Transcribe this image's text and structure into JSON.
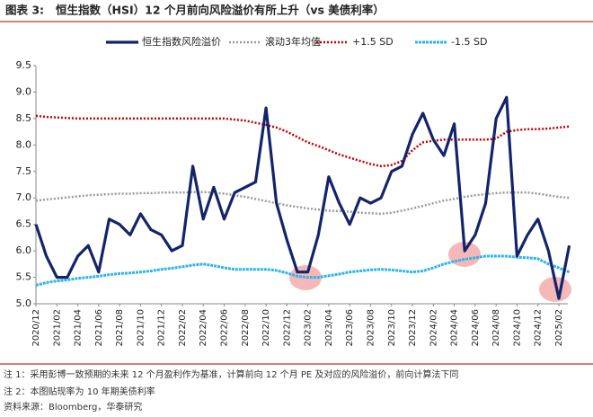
{
  "chart_data": {
    "type": "line",
    "label": "图表 3:",
    "title": "恒生指数（HSI）12 个月前向风险溢价有所上升（vs  美债利率）",
    "categories": [
      "2020/12",
      null,
      "2021/02",
      null,
      "2021/04",
      null,
      "2021/06",
      null,
      "2021/08",
      null,
      "2021/10",
      null,
      "2021/12",
      null,
      "2022/02",
      null,
      "2022/04",
      null,
      "2022/06",
      null,
      "2022/08",
      null,
      "2022/10",
      null,
      "2022/12",
      null,
      "2023/02",
      null,
      "2023/04",
      null,
      "2023/06",
      null,
      "2023/08",
      null,
      "2023/10",
      null,
      "2023/12",
      null,
      "2024/02",
      null,
      "2024/04",
      null,
      "2024/06",
      null,
      "2024/08",
      null,
      "2024/10",
      null,
      "2024/12",
      null,
      "2025/02",
      null
    ],
    "ylim": [
      5.0,
      9.5
    ],
    "yticks": [
      {
        "value": 5.0,
        "label": "5.0"
      },
      5.5,
      {
        "value": 6.0,
        "label": "6.0"
      },
      6.5,
      {
        "value": 7.0,
        "label": "7.0"
      },
      7.5,
      {
        "value": 8.0,
        "label": "8.0"
      },
      8.5,
      {
        "value": 9.0,
        "label": "9.0"
      },
      9.5
    ],
    "grid": false,
    "series": [
      {
        "name": "恒生指数风险溢价",
        "color": "#14246b",
        "values": [
          6.5,
          5.9,
          5.5,
          5.5,
          5.9,
          6.1,
          5.6,
          6.6,
          6.5,
          6.3,
          6.7,
          6.4,
          6.3,
          6.0,
          6.1,
          7.6,
          6.6,
          7.2,
          6.6,
          7.1,
          7.2,
          7.3,
          8.7,
          6.9,
          6.2,
          5.6,
          5.6,
          6.3,
          7.4,
          6.9,
          6.5,
          7.0,
          6.9,
          7.0,
          7.5,
          7.6,
          8.2,
          8.6,
          8.1,
          7.8,
          8.4,
          6.0,
          6.3,
          6.9,
          8.5,
          8.9,
          5.9,
          6.3,
          6.6,
          6.0,
          5.1,
          6.1
        ]
      },
      {
        "name": "滚动3年均值",
        "color": "#9a9a9a",
        "values": [
          6.95,
          6.97,
          6.99,
          7.01,
          7.03,
          7.05,
          7.06,
          7.07,
          7.08,
          7.08,
          7.09,
          7.09,
          7.1,
          7.1,
          7.1,
          7.11,
          7.11,
          7.1,
          7.08,
          7.05,
          7.02,
          6.98,
          6.94,
          6.9,
          6.86,
          6.83,
          6.8,
          6.78,
          6.76,
          6.75,
          6.74,
          6.72,
          6.71,
          6.7,
          6.72,
          6.76,
          6.8,
          6.85,
          6.9,
          6.95,
          6.98,
          7.02,
          7.05,
          7.07,
          7.09,
          7.1,
          7.1,
          7.1,
          7.08,
          7.05,
          7.02,
          7.0
        ]
      },
      {
        "name": "+1.5 SD",
        "color": "#c00000",
        "values": [
          8.55,
          8.53,
          8.52,
          8.51,
          8.5,
          8.5,
          8.5,
          8.5,
          8.5,
          8.5,
          8.5,
          8.5,
          8.5,
          8.5,
          8.5,
          8.5,
          8.5,
          8.5,
          8.5,
          8.48,
          8.46,
          8.42,
          8.38,
          8.33,
          8.25,
          8.15,
          8.05,
          7.98,
          7.9,
          7.82,
          7.76,
          7.7,
          7.64,
          7.6,
          7.62,
          7.7,
          7.9,
          8.05,
          8.08,
          8.1,
          8.1,
          8.1,
          8.1,
          8.1,
          8.12,
          8.25,
          8.28,
          8.3,
          8.3,
          8.31,
          8.33,
          8.35
        ]
      },
      {
        "name": "-1.5 SD",
        "color": "#2bb5ea",
        "values": [
          5.35,
          5.4,
          5.43,
          5.45,
          5.48,
          5.5,
          5.52,
          5.55,
          5.57,
          5.58,
          5.6,
          5.62,
          5.65,
          5.67,
          5.7,
          5.73,
          5.75,
          5.72,
          5.68,
          5.65,
          5.65,
          5.65,
          5.65,
          5.63,
          5.58,
          5.52,
          5.5,
          5.5,
          5.53,
          5.56,
          5.6,
          5.62,
          5.64,
          5.65,
          5.64,
          5.62,
          5.6,
          5.62,
          5.68,
          5.75,
          5.8,
          5.84,
          5.87,
          5.9,
          5.9,
          5.9,
          5.88,
          5.87,
          5.85,
          5.75,
          5.68,
          5.6
        ]
      }
    ],
    "notes": [
      "注 1：采用彭博一致预期的未来 12 个月盈利作为基准，计算前向 12 个月 PE 及对应的风险溢价，前向计算法下同",
      "注 2：本图贴现率为 10 年期美债利率",
      "资料来源：Bloomberg，华泰研究"
    ]
  }
}
